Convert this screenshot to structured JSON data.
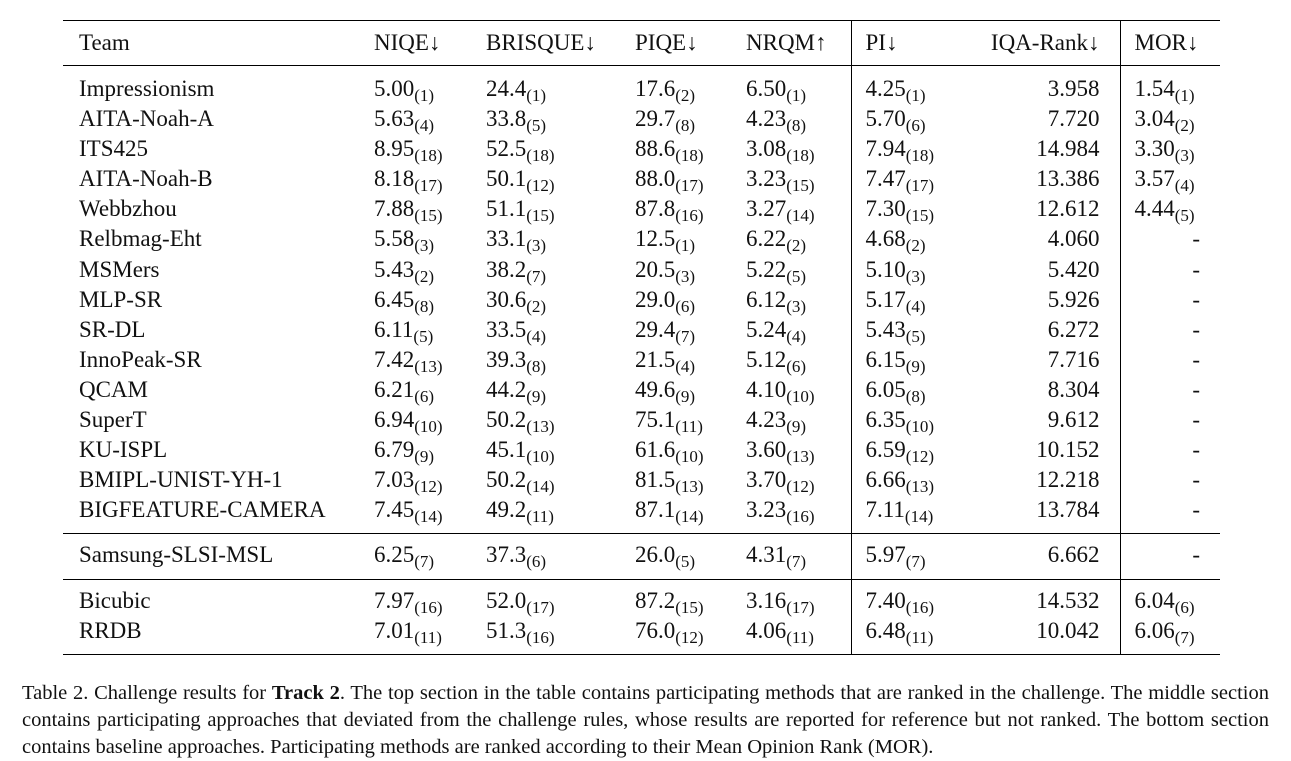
{
  "table": {
    "headers": [
      "Team",
      "NIQE↓",
      "BRISQUE↓",
      "PIQE↓",
      "NRQM↑",
      "PI↓",
      "IQA-Rank↓",
      "MOR↓"
    ],
    "sections": [
      [
        {
          "team": "Impressionism",
          "niqe": "5.00",
          "niqe_r": "(1)",
          "brisque": "24.4",
          "brisque_r": "(1)",
          "piqe": "17.6",
          "piqe_r": "(2)",
          "nrqm": "6.50",
          "nrqm_r": "(1)",
          "pi": "4.25",
          "pi_r": "(1)",
          "iqa": "3.958",
          "mor": "1.54",
          "mor_r": "(1)"
        },
        {
          "team": "AITA-Noah-A",
          "niqe": "5.63",
          "niqe_r": "(4)",
          "brisque": "33.8",
          "brisque_r": "(5)",
          "piqe": "29.7",
          "piqe_r": "(8)",
          "nrqm": "4.23",
          "nrqm_r": "(8)",
          "pi": "5.70",
          "pi_r": "(6)",
          "iqa": "7.720",
          "mor": "3.04",
          "mor_r": "(2)"
        },
        {
          "team": "ITS425",
          "niqe": "8.95",
          "niqe_r": "(18)",
          "brisque": "52.5",
          "brisque_r": "(18)",
          "piqe": "88.6",
          "piqe_r": "(18)",
          "nrqm": "3.08",
          "nrqm_r": "(18)",
          "pi": "7.94",
          "pi_r": "(18)",
          "iqa": "14.984",
          "mor": "3.30",
          "mor_r": "(3)"
        },
        {
          "team": "AITA-Noah-B",
          "niqe": "8.18",
          "niqe_r": "(17)",
          "brisque": "50.1",
          "brisque_r": "(12)",
          "piqe": "88.0",
          "piqe_r": "(17)",
          "nrqm": "3.23",
          "nrqm_r": "(15)",
          "pi": "7.47",
          "pi_r": "(17)",
          "iqa": "13.386",
          "mor": "3.57",
          "mor_r": "(4)"
        },
        {
          "team": "Webbzhou",
          "niqe": "7.88",
          "niqe_r": "(15)",
          "brisque": "51.1",
          "brisque_r": "(15)",
          "piqe": "87.8",
          "piqe_r": "(16)",
          "nrqm": "3.27",
          "nrqm_r": "(14)",
          "pi": "7.30",
          "pi_r": "(15)",
          "iqa": "12.612",
          "mor": "4.44",
          "mor_r": "(5)"
        },
        {
          "team": "Relbmag-Eht",
          "niqe": "5.58",
          "niqe_r": "(3)",
          "brisque": "33.1",
          "brisque_r": "(3)",
          "piqe": "12.5",
          "piqe_r": "(1)",
          "nrqm": "6.22",
          "nrqm_r": "(2)",
          "pi": "4.68",
          "pi_r": "(2)",
          "iqa": "4.060",
          "mor": "-",
          "mor_r": ""
        },
        {
          "team": "MSMers",
          "niqe": "5.43",
          "niqe_r": "(2)",
          "brisque": "38.2",
          "brisque_r": "(7)",
          "piqe": "20.5",
          "piqe_r": "(3)",
          "nrqm": "5.22",
          "nrqm_r": "(5)",
          "pi": "5.10",
          "pi_r": "(3)",
          "iqa": "5.420",
          "mor": "-",
          "mor_r": ""
        },
        {
          "team": "MLP-SR",
          "niqe": "6.45",
          "niqe_r": "(8)",
          "brisque": "30.6",
          "brisque_r": "(2)",
          "piqe": "29.0",
          "piqe_r": "(6)",
          "nrqm": "6.12",
          "nrqm_r": "(3)",
          "pi": "5.17",
          "pi_r": "(4)",
          "iqa": "5.926",
          "mor": "-",
          "mor_r": ""
        },
        {
          "team": "SR-DL",
          "niqe": "6.11",
          "niqe_r": "(5)",
          "brisque": "33.5",
          "brisque_r": "(4)",
          "piqe": "29.4",
          "piqe_r": "(7)",
          "nrqm": "5.24",
          "nrqm_r": "(4)",
          "pi": "5.43",
          "pi_r": "(5)",
          "iqa": "6.272",
          "mor": "-",
          "mor_r": ""
        },
        {
          "team": "InnoPeak-SR",
          "niqe": "7.42",
          "niqe_r": "(13)",
          "brisque": "39.3",
          "brisque_r": "(8)",
          "piqe": "21.5",
          "piqe_r": "(4)",
          "nrqm": "5.12",
          "nrqm_r": "(6)",
          "pi": "6.15",
          "pi_r": "(9)",
          "iqa": "7.716",
          "mor": "-",
          "mor_r": ""
        },
        {
          "team": "QCAM",
          "niqe": "6.21",
          "niqe_r": "(6)",
          "brisque": "44.2",
          "brisque_r": "(9)",
          "piqe": "49.6",
          "piqe_r": "(9)",
          "nrqm": "4.10",
          "nrqm_r": "(10)",
          "pi": "6.05",
          "pi_r": "(8)",
          "iqa": "8.304",
          "mor": "-",
          "mor_r": ""
        },
        {
          "team": "SuperT",
          "niqe": "6.94",
          "niqe_r": "(10)",
          "brisque": "50.2",
          "brisque_r": "(13)",
          "piqe": "75.1",
          "piqe_r": "(11)",
          "nrqm": "4.23",
          "nrqm_r": "(9)",
          "pi": "6.35",
          "pi_r": "(10)",
          "iqa": "9.612",
          "mor": "-",
          "mor_r": ""
        },
        {
          "team": "KU-ISPL",
          "niqe": "6.79",
          "niqe_r": "(9)",
          "brisque": "45.1",
          "brisque_r": "(10)",
          "piqe": "61.6",
          "piqe_r": "(10)",
          "nrqm": "3.60",
          "nrqm_r": "(13)",
          "pi": "6.59",
          "pi_r": "(12)",
          "iqa": "10.152",
          "mor": "-",
          "mor_r": ""
        },
        {
          "team": "BMIPL-UNIST-YH-1",
          "niqe": "7.03",
          "niqe_r": "(12)",
          "brisque": "50.2",
          "brisque_r": "(14)",
          "piqe": "81.5",
          "piqe_r": "(13)",
          "nrqm": "3.70",
          "nrqm_r": "(12)",
          "pi": "6.66",
          "pi_r": "(13)",
          "iqa": "12.218",
          "mor": "-",
          "mor_r": ""
        },
        {
          "team": "BIGFEATURE-CAMERA",
          "niqe": "7.45",
          "niqe_r": "(14)",
          "brisque": "49.2",
          "brisque_r": "(11)",
          "piqe": "87.1",
          "piqe_r": "(14)",
          "nrqm": "3.23",
          "nrqm_r": "(16)",
          "pi": "7.11",
          "pi_r": "(14)",
          "iqa": "13.784",
          "mor": "-",
          "mor_r": ""
        }
      ],
      [
        {
          "team": "Samsung-SLSI-MSL",
          "niqe": "6.25",
          "niqe_r": "(7)",
          "brisque": "37.3",
          "brisque_r": "(6)",
          "piqe": "26.0",
          "piqe_r": "(5)",
          "nrqm": "4.31",
          "nrqm_r": "(7)",
          "pi": "5.97",
          "pi_r": "(7)",
          "iqa": "6.662",
          "mor": "-",
          "mor_r": ""
        }
      ],
      [
        {
          "team": "Bicubic",
          "niqe": "7.97",
          "niqe_r": "(16)",
          "brisque": "52.0",
          "brisque_r": "(17)",
          "piqe": "87.2",
          "piqe_r": "(15)",
          "nrqm": "3.16",
          "nrqm_r": "(17)",
          "pi": "7.40",
          "pi_r": "(16)",
          "iqa": "14.532",
          "mor": "6.04",
          "mor_r": "(6)"
        },
        {
          "team": "RRDB",
          "niqe": "7.01",
          "niqe_r": "(11)",
          "brisque": "51.3",
          "brisque_r": "(16)",
          "piqe": "76.0",
          "piqe_r": "(12)",
          "nrqm": "4.06",
          "nrqm_r": "(11)",
          "pi": "6.48",
          "pi_r": "(11)",
          "iqa": "10.042",
          "mor": "6.06",
          "mor_r": "(7)"
        }
      ]
    ]
  },
  "caption": {
    "prefix": "Table 2. Challenge results for ",
    "bold": "Track 2",
    "text": ". The top section in the table contains participating methods that are ranked in the challenge. The middle section contains participating approaches that deviated from the challenge rules, whose results are reported for reference but not ranked. The bottom section contains baseline approaches. Participating methods are ranked according to their Mean Opinion Rank (MOR)."
  }
}
